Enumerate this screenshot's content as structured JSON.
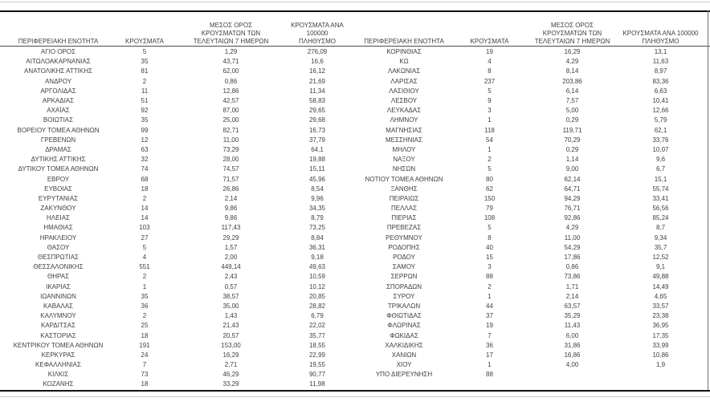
{
  "colors": {
    "text": "#3f3f3f",
    "rule_dark": "#111111",
    "rule_light": "#c9c9c9",
    "rule_header": "#4a4a4a"
  },
  "table": {
    "headers": {
      "region": "ΠΕΡΙΦΕΡΕΙΑΚΗ ΕΝΟΤΗΤΑ",
      "cases": "ΚΡΟΥΣΜΑΤΑ",
      "avg7day": "ΜΕΣΟΣ ΟΡΟΣ\nΚΡΟΥΣΜΑΤΩΝ ΤΩΝ\nΤΕΛΕΥΤΑΙΩΝ 7 ΗΜΕΡΩΝ",
      "per100k": "ΚΡΟΥΣΜΑΤΑ ΑΝΑ 100000\nΠΛΗΘΥΣΜΟ"
    },
    "left_rows": [
      {
        "region": "ΑΓΙΟ ΟΡΟΣ",
        "cases": "5",
        "avg7day": "1,29",
        "per100k": "276,09"
      },
      {
        "region": "ΑΙΤΩΛΟΑΚΑΡΝΑΝΙΑΣ",
        "cases": "35",
        "avg7day": "43,71",
        "per100k": "16,6"
      },
      {
        "region": "ΑΝΑΤΟΛΙΚΗΣ ΑΤΤΙΚΗΣ",
        "cases": "81",
        "avg7day": "62,00",
        "per100k": "16,12"
      },
      {
        "region": "ΑΝΔΡΟΥ",
        "cases": "2",
        "avg7day": "0,86",
        "per100k": "21,69"
      },
      {
        "region": "ΑΡΓΟΛΙΔΑΣ",
        "cases": "11",
        "avg7day": "12,86",
        "per100k": "11,34"
      },
      {
        "region": "ΑΡΚΑΔΙΑΣ",
        "cases": "51",
        "avg7day": "42,57",
        "per100k": "58,83"
      },
      {
        "region": "ΑΧΑΪΑΣ",
        "cases": "92",
        "avg7day": "87,00",
        "per100k": "29,65"
      },
      {
        "region": "ΒΟΙΩΤΙΑΣ",
        "cases": "35",
        "avg7day": "25,00",
        "per100k": "29,68"
      },
      {
        "region": "ΒΟΡΕΙΟΥ ΤΟΜΕΑ ΑΘΗΝΩΝ",
        "cases": "99",
        "avg7day": "82,71",
        "per100k": "16,73"
      },
      {
        "region": "ΓΡΕΒΕΝΩΝ",
        "cases": "12",
        "avg7day": "11,00",
        "per100k": "37,79"
      },
      {
        "region": "ΔΡΑΜΑΣ",
        "cases": "63",
        "avg7day": "73,29",
        "per100k": "64,1"
      },
      {
        "region": "ΔΥΤΙΚΗΣ ΑΤΤΙΚΗΣ",
        "cases": "32",
        "avg7day": "28,00",
        "per100k": "19,88"
      },
      {
        "region": "ΔΥΤΙΚΟΥ ΤΟΜΕΑ ΑΘΗΝΩΝ",
        "cases": "74",
        "avg7day": "74,57",
        "per100k": "15,11"
      },
      {
        "region": "ΕΒΡΟΥ",
        "cases": "68",
        "avg7day": "71,57",
        "per100k": "45,96"
      },
      {
        "region": "ΕΥΒΟΙΑΣ",
        "cases": "18",
        "avg7day": "26,86",
        "per100k": "8,54"
      },
      {
        "region": "ΕΥΡΥΤΑΝΙΑΣ",
        "cases": "2",
        "avg7day": "2,14",
        "per100k": "9,96"
      },
      {
        "region": "ΖΑΚΥΝΘΟΥ",
        "cases": "14",
        "avg7day": "9,86",
        "per100k": "34,35"
      },
      {
        "region": "ΗΛΕΙΑΣ",
        "cases": "14",
        "avg7day": "9,86",
        "per100k": "8,79"
      },
      {
        "region": "ΗΜΑΘΙΑΣ",
        "cases": "103",
        "avg7day": "117,43",
        "per100k": "73,25"
      },
      {
        "region": "ΗΡΑΚΛΕΙΟΥ",
        "cases": "27",
        "avg7day": "29,29",
        "per100k": "8,84"
      },
      {
        "region": "ΘΑΣΟΥ",
        "cases": "5",
        "avg7day": "1,57",
        "per100k": "36,31"
      },
      {
        "region": "ΘΕΣΠΡΩΤΙΑΣ",
        "cases": "4",
        "avg7day": "2,00",
        "per100k": "9,18"
      },
      {
        "region": "ΘΕΣΣΑΛΟΝΙΚΗΣ",
        "cases": "551",
        "avg7day": "449,14",
        "per100k": "49,63"
      },
      {
        "region": "ΘΗΡΑΣ",
        "cases": "2",
        "avg7day": "2,43",
        "per100k": "10,59"
      },
      {
        "region": "ΙΚΑΡΙΑΣ",
        "cases": "1",
        "avg7day": "0,57",
        "per100k": "10,12"
      },
      {
        "region": "ΙΩΑΝΝΙΝΩΝ",
        "cases": "35",
        "avg7day": "38,57",
        "per100k": "20,85"
      },
      {
        "region": "ΚΑΒΑΛΑΣ",
        "cases": "36",
        "avg7day": "35,00",
        "per100k": "28,82"
      },
      {
        "region": "ΚΑΛΥΜΝΟΥ",
        "cases": "2",
        "avg7day": "1,43",
        "per100k": "6,79"
      },
      {
        "region": "ΚΑΡΔΙΤΣΑΣ",
        "cases": "25",
        "avg7day": "21,43",
        "per100k": "22,02"
      },
      {
        "region": "ΚΑΣΤΟΡΙΑΣ",
        "cases": "18",
        "avg7day": "20,57",
        "per100k": "35,77"
      },
      {
        "region": "ΚΕΝΤΡΙΚΟΥ ΤΟΜΕΑ ΑΘΗΝΩΝ",
        "cases": "191",
        "avg7day": "153,00",
        "per100k": "18,55"
      },
      {
        "region": "ΚΕΡΚΥΡΑΣ",
        "cases": "24",
        "avg7day": "16,29",
        "per100k": "22,99"
      },
      {
        "region": "ΚΕΦΑΛΛΗΝΙΑΣ",
        "cases": "7",
        "avg7day": "2,71",
        "per100k": "19,55"
      },
      {
        "region": "ΚΙΛΚΙΣ",
        "cases": "73",
        "avg7day": "46,29",
        "per100k": "90,77"
      },
      {
        "region": "ΚΟΖΑΝΗΣ",
        "cases": "18",
        "avg7day": "33,29",
        "per100k": "11,98"
      }
    ],
    "right_rows": [
      {
        "region": "ΚΟΡΙΝΘΙΑΣ",
        "cases": "19",
        "avg7day": "16,29",
        "per100k": "13,1"
      },
      {
        "region": "ΚΩ",
        "cases": "4",
        "avg7day": "4,29",
        "per100k": "11,63"
      },
      {
        "region": "ΛΑΚΩΝΙΑΣ",
        "cases": "8",
        "avg7day": "8,14",
        "per100k": "8,97"
      },
      {
        "region": "ΛΑΡΙΣΑΣ",
        "cases": "237",
        "avg7day": "203,86",
        "per100k": "83,36"
      },
      {
        "region": "ΛΑΣΙΘΙΟΥ",
        "cases": "5",
        "avg7day": "6,14",
        "per100k": "6,63"
      },
      {
        "region": "ΛΕΣΒΟΥ",
        "cases": "9",
        "avg7day": "7,57",
        "per100k": "10,41"
      },
      {
        "region": "ΛΕΥΚΑΔΑΣ",
        "cases": "3",
        "avg7day": "5,00",
        "per100k": "12,66"
      },
      {
        "region": "ΛΗΜΝΟΥ",
        "cases": "1",
        "avg7day": "0,29",
        "per100k": "5,79"
      },
      {
        "region": "ΜΑΓΝΗΣΙΑΣ",
        "cases": "118",
        "avg7day": "119,71",
        "per100k": "62,1"
      },
      {
        "region": "ΜΕΣΣΗΝΙΑΣ",
        "cases": "54",
        "avg7day": "70,29",
        "per100k": "33,76"
      },
      {
        "region": "ΜΗΛΟΥ",
        "cases": "1",
        "avg7day": "0,29",
        "per100k": "10,07"
      },
      {
        "region": "ΝΑΞΟΥ",
        "cases": "2",
        "avg7day": "1,14",
        "per100k": "9,6"
      },
      {
        "region": "ΝΗΣΩΝ",
        "cases": "5",
        "avg7day": "9,00",
        "per100k": "6,7"
      },
      {
        "region": "ΝΟΤΙΟΥ ΤΟΜΕΑ ΑΘΗΝΩΝ",
        "cases": "80",
        "avg7day": "62,14",
        "per100k": "15,1"
      },
      {
        "region": "ΞΑΝΘΗΣ",
        "cases": "62",
        "avg7day": "64,71",
        "per100k": "55,74"
      },
      {
        "region": "ΠΕΙΡΑΙΩΣ",
        "cases": "150",
        "avg7day": "94,29",
        "per100k": "33,41"
      },
      {
        "region": "ΠΕΛΛΑΣ",
        "cases": "79",
        "avg7day": "76,71",
        "per100k": "56,56"
      },
      {
        "region": "ΠΙΕΡΙΑΣ",
        "cases": "108",
        "avg7day": "92,86",
        "per100k": "85,24"
      },
      {
        "region": "ΠΡΕΒΕΖΑΣ",
        "cases": "5",
        "avg7day": "4,29",
        "per100k": "8,7"
      },
      {
        "region": "ΡΕΘΥΜΝΟΥ",
        "cases": "8",
        "avg7day": "11,00",
        "per100k": "9,34"
      },
      {
        "region": "ΡΟΔΟΠΗΣ",
        "cases": "40",
        "avg7day": "54,29",
        "per100k": "35,7"
      },
      {
        "region": "ΡΟΔΟΥ",
        "cases": "15",
        "avg7day": "17,86",
        "per100k": "12,52"
      },
      {
        "region": "ΣΑΜΟΥ",
        "cases": "3",
        "avg7day": "0,86",
        "per100k": "9,1"
      },
      {
        "region": "ΣΕΡΡΩΝ",
        "cases": "88",
        "avg7day": "73,86",
        "per100k": "49,88"
      },
      {
        "region": "ΣΠΟΡΑΔΩΝ",
        "cases": "2",
        "avg7day": "1,71",
        "per100k": "14,49"
      },
      {
        "region": "ΣΥΡΟΥ",
        "cases": "1",
        "avg7day": "2,14",
        "per100k": "4,65"
      },
      {
        "region": "ΤΡΙΚΑΛΩΝ",
        "cases": "44",
        "avg7day": "63,57",
        "per100k": "33,57"
      },
      {
        "region": "ΦΘΙΩΤΙΔΑΣ",
        "cases": "37",
        "avg7day": "35,29",
        "per100k": "23,38"
      },
      {
        "region": "ΦΛΩΡΙΝΑΣ",
        "cases": "19",
        "avg7day": "11,43",
        "per100k": "36,95"
      },
      {
        "region": "ΦΩΚΙΔΑΣ",
        "cases": "7",
        "avg7day": "6,00",
        "per100k": "17,35"
      },
      {
        "region": "ΧΑΛΚΙΔΙΚΗΣ",
        "cases": "36",
        "avg7day": "31,86",
        "per100k": "33,99"
      },
      {
        "region": "ΧΑΝΙΩΝ",
        "cases": "17",
        "avg7day": "16,86",
        "per100k": "10,86"
      },
      {
        "region": "ΧΙΟΥ",
        "cases": "1",
        "avg7day": "4,00",
        "per100k": "1,9"
      },
      {
        "region": "ΥΠΟ ΔΙΕΡΕΥΝΗΣΗ",
        "cases": "88",
        "avg7day": "",
        "per100k": ""
      }
    ]
  }
}
